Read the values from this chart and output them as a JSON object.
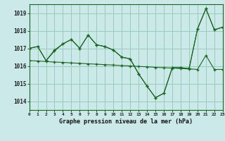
{
  "title": "Graphe pression niveau de la mer (hPa)",
  "background_color": "#cbe9e9",
  "grid_color": "#99ccbb",
  "line_color": "#1a6620",
  "x_min": 0,
  "x_max": 23,
  "y_min": 1013.5,
  "y_max": 1019.5,
  "yticks": [
    1014,
    1015,
    1016,
    1017,
    1018,
    1019
  ],
  "xticks": [
    0,
    1,
    2,
    3,
    4,
    5,
    6,
    7,
    8,
    9,
    10,
    11,
    12,
    13,
    14,
    15,
    16,
    17,
    18,
    19,
    20,
    21,
    22,
    23
  ],
  "series1": {
    "x": [
      0,
      1,
      2,
      3,
      4,
      5,
      6,
      7,
      8,
      9,
      10,
      11,
      12,
      13,
      14,
      15,
      16,
      17,
      18,
      19,
      20,
      21,
      22,
      23
    ],
    "y": [
      1017.0,
      1017.1,
      1016.3,
      1016.9,
      1017.25,
      1017.5,
      1017.0,
      1017.75,
      1017.2,
      1017.1,
      1016.9,
      1016.5,
      1016.4,
      1015.55,
      1014.85,
      1014.2,
      1014.45,
      1015.9,
      1015.9,
      1015.85,
      1018.1,
      1019.25,
      1018.05,
      1018.2
    ]
  },
  "series2": {
    "x": [
      0,
      1,
      2,
      3,
      4,
      5,
      6,
      7,
      8,
      9,
      10,
      11,
      12,
      13,
      14,
      15,
      16,
      17,
      18,
      19,
      20,
      21,
      22,
      23
    ],
    "y": [
      1017.0,
      1017.1,
      1016.3,
      1016.85,
      1017.25,
      1017.5,
      1017.0,
      1017.75,
      1017.2,
      1017.1,
      1016.9,
      1016.5,
      1016.4,
      1015.55,
      1014.85,
      1014.2,
      1014.45,
      1015.9,
      1015.9,
      1015.85,
      1018.1,
      1019.25,
      1018.05,
      1018.2
    ]
  },
  "series3": {
    "x": [
      0,
      1,
      2,
      3,
      4,
      5,
      6,
      7,
      8,
      9,
      10,
      11,
      12,
      13,
      14,
      15,
      16,
      17,
      18,
      19,
      20,
      21,
      22,
      23
    ],
    "y": [
      1016.3,
      1016.28,
      1016.25,
      1016.22,
      1016.2,
      1016.17,
      1016.15,
      1016.12,
      1016.1,
      1016.07,
      1016.05,
      1016.02,
      1016.0,
      1015.97,
      1015.95,
      1015.92,
      1015.9,
      1015.88,
      1015.85,
      1015.83,
      1015.8,
      1016.6,
      1015.8,
      1015.8
    ]
  }
}
